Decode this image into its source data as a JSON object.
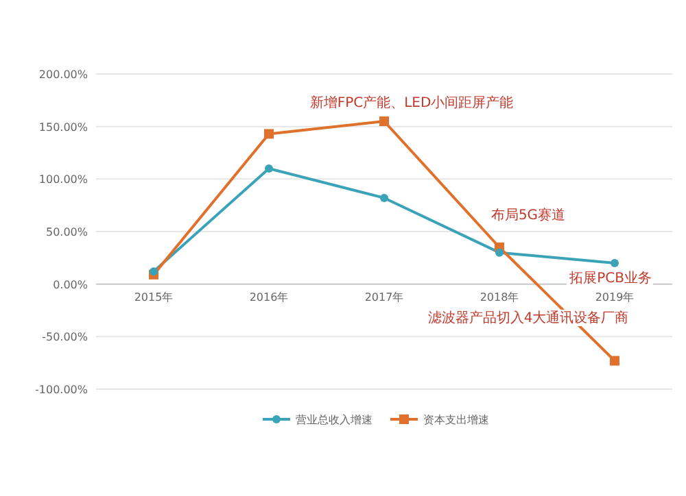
{
  "chart_data": {
    "type": "line",
    "categories": [
      "2015年",
      "2016年",
      "2017年",
      "2018年",
      "2019年"
    ],
    "series": [
      {
        "name": "营业总收入增速",
        "color": "#3ba3b8",
        "marker": "circle",
        "values": [
          12,
          110,
          82,
          30,
          20
        ]
      },
      {
        "name": "资本支出增速",
        "color": "#e0712c",
        "marker": "square",
        "values": [
          9,
          143,
          155,
          35,
          -73
        ]
      }
    ],
    "ylim": [
      -100,
      200
    ],
    "yticks": [
      {
        "value": -100,
        "label": "-100.00%"
      },
      {
        "value": -50,
        "label": "-50.00%"
      },
      {
        "value": 0,
        "label": "0.00%"
      },
      {
        "value": 50,
        "label": "50.00%"
      },
      {
        "value": 100,
        "label": "100.00%"
      },
      {
        "value": 150,
        "label": "150.00%"
      },
      {
        "value": 200,
        "label": "200.00%"
      }
    ],
    "grid": "y",
    "legend": "bottom",
    "annotations": [
      "新增FPC产能、LED小间距屏产能",
      "布局5G赛道",
      "拓展PCB业务",
      "滤波器产品切入4大通讯设备厂商"
    ]
  }
}
